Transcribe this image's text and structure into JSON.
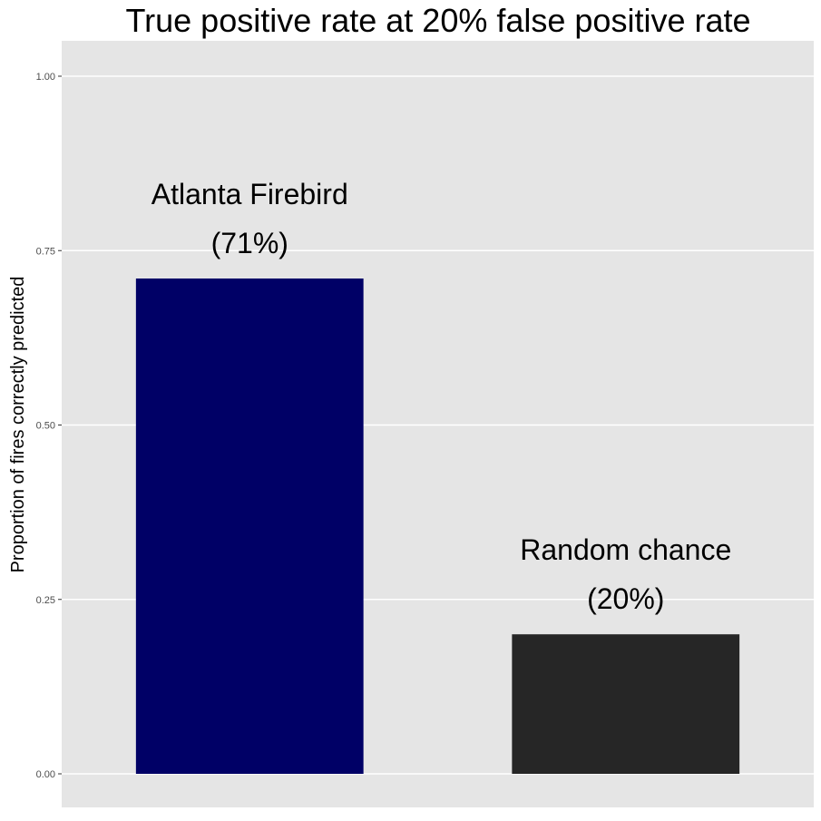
{
  "chart_data": {
    "type": "bar",
    "title": "True positive rate at 20% false positive rate",
    "xlabel": "",
    "ylabel": "Proportion of fires correctly predicted",
    "ylim": [
      0,
      1.05
    ],
    "y_ticks": [
      0,
      0.25,
      0.5,
      0.75,
      1.0
    ],
    "y_tick_labels": [
      "0.00",
      "0.25",
      "0.50",
      "0.75",
      "1.00"
    ],
    "grid": true,
    "categories": [
      "Atlanta Firebird",
      "Random chance"
    ],
    "values": [
      0.71,
      0.2
    ],
    "data_labels": [
      "(71%)",
      "(20%)"
    ],
    "colors": [
      "#000066",
      "#262626"
    ],
    "panel_background": "#e5e5e5",
    "gridline_color": "#ffffff"
  }
}
